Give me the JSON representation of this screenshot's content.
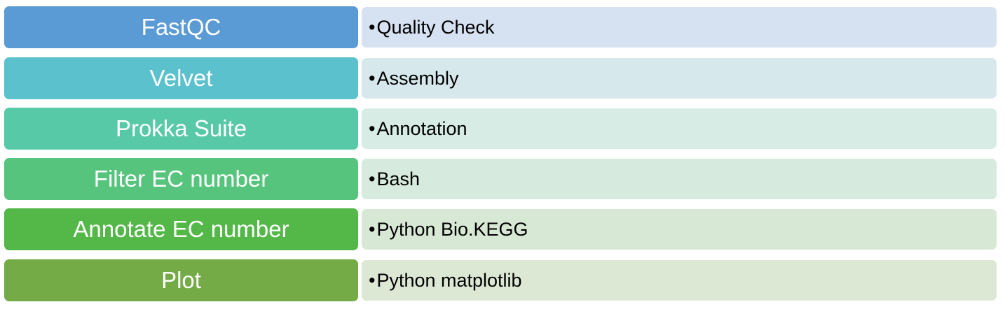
{
  "rows": [
    {
      "step": "FastQC",
      "tool": "Quality Check",
      "step_color": "#5b9bd5",
      "tool_color": "#d6e1f2"
    },
    {
      "step": "Velvet",
      "tool": "Assembly",
      "step_color": "#5bc1cd",
      "tool_color": "#d6e8ec"
    },
    {
      "step": "Prokka Suite",
      "tool": "Annotation",
      "step_color": "#57c9a6",
      "tool_color": "#d6ece5"
    },
    {
      "step": "Filter EC number",
      "tool": "Bash",
      "step_color": "#56c47d",
      "tool_color": "#d6eadd"
    },
    {
      "step": "Annotate EC number",
      "tool": "Python Bio.KEGG",
      "step_color": "#53b847",
      "tool_color": "#d7e8d4"
    },
    {
      "step": "Plot",
      "tool": "Python matplotlib",
      "step_color": "#74ab47",
      "tool_color": "#dce7d4"
    }
  ],
  "bullet": "•"
}
